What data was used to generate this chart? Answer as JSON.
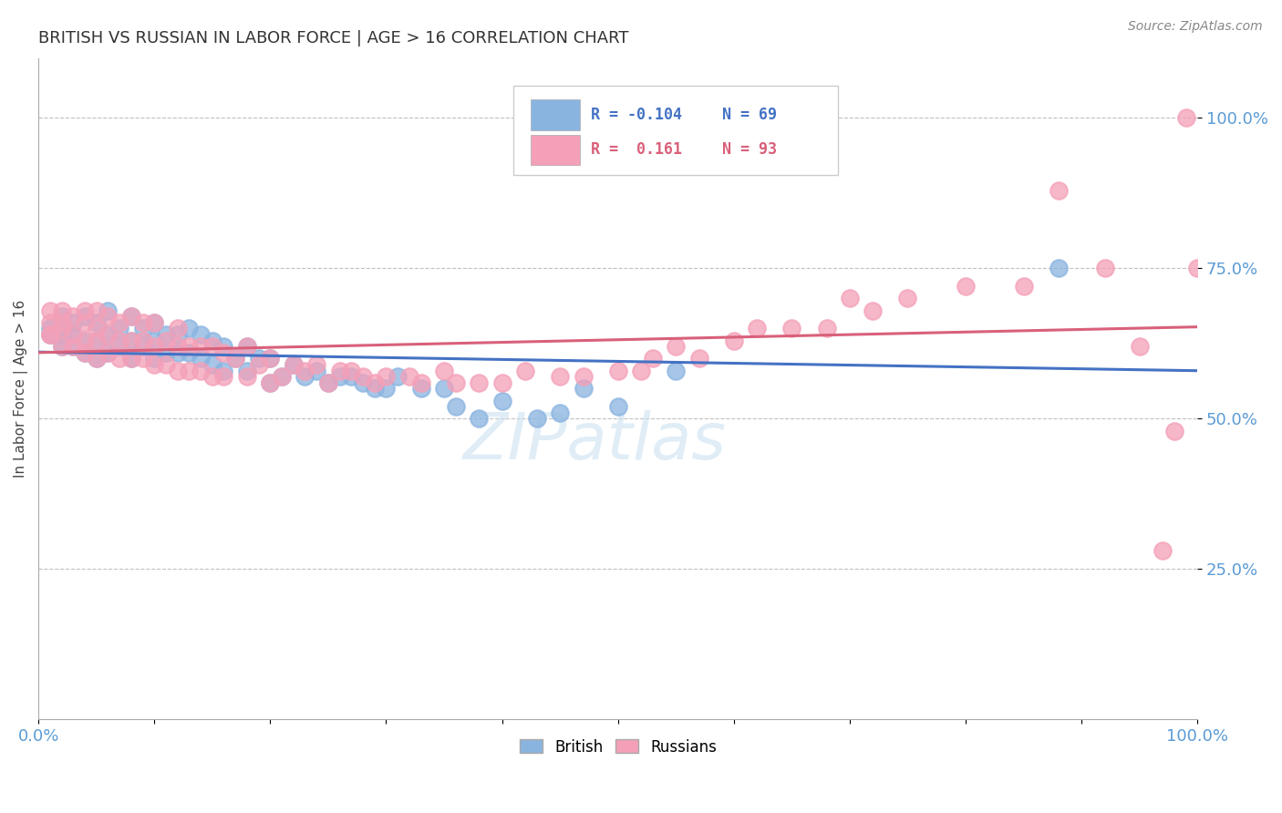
{
  "title": "BRITISH VS RUSSIAN IN LABOR FORCE | AGE > 16 CORRELATION CHART",
  "source_text": "Source: ZipAtlas.com",
  "ylabel": "In Labor Force | Age > 16",
  "xlim": [
    0.0,
    1.0
  ],
  "ylim": [
    0.0,
    1.1
  ],
  "yticks": [
    0.25,
    0.5,
    0.75,
    1.0
  ],
  "ytick_labels": [
    "25.0%",
    "50.0%",
    "75.0%",
    "100.0%"
  ],
  "british_color": "#8ab4e0",
  "russian_color": "#f4a0b8",
  "british_line_color": "#4472c4",
  "russian_line_color": "#d9607a",
  "british_r": -0.104,
  "british_n": 69,
  "russian_r": 0.161,
  "russian_n": 93,
  "grid_color": "#c0c0c0",
  "title_color": "#333333",
  "axis_tick_color": "#5b9bd5",
  "background_color": "#ffffff",
  "watermark": "ZIPatlas",
  "british_scatter_x": [
    0.01,
    0.01,
    0.01,
    0.02,
    0.02,
    0.02,
    0.02,
    0.03,
    0.03,
    0.03,
    0.04,
    0.04,
    0.04,
    0.05,
    0.05,
    0.05,
    0.06,
    0.06,
    0.06,
    0.07,
    0.07,
    0.08,
    0.08,
    0.08,
    0.09,
    0.09,
    0.1,
    0.1,
    0.1,
    0.11,
    0.11,
    0.12,
    0.12,
    0.13,
    0.13,
    0.14,
    0.14,
    0.15,
    0.15,
    0.16,
    0.16,
    0.17,
    0.18,
    0.18,
    0.19,
    0.2,
    0.2,
    0.21,
    0.22,
    0.23,
    0.24,
    0.25,
    0.26,
    0.27,
    0.28,
    0.29,
    0.3,
    0.31,
    0.33,
    0.35,
    0.36,
    0.38,
    0.4,
    0.43,
    0.45,
    0.47,
    0.5,
    0.55,
    0.88
  ],
  "british_scatter_y": [
    0.64,
    0.64,
    0.65,
    0.62,
    0.64,
    0.65,
    0.67,
    0.62,
    0.64,
    0.66,
    0.61,
    0.63,
    0.67,
    0.6,
    0.63,
    0.66,
    0.61,
    0.64,
    0.68,
    0.62,
    0.65,
    0.6,
    0.63,
    0.67,
    0.62,
    0.65,
    0.6,
    0.63,
    0.66,
    0.61,
    0.64,
    0.61,
    0.64,
    0.61,
    0.65,
    0.6,
    0.64,
    0.59,
    0.63,
    0.58,
    0.62,
    0.6,
    0.58,
    0.62,
    0.6,
    0.56,
    0.6,
    0.57,
    0.59,
    0.57,
    0.58,
    0.56,
    0.57,
    0.57,
    0.56,
    0.55,
    0.55,
    0.57,
    0.55,
    0.55,
    0.52,
    0.5,
    0.53,
    0.5,
    0.51,
    0.55,
    0.52,
    0.58,
    0.75
  ],
  "russian_scatter_x": [
    0.01,
    0.01,
    0.01,
    0.01,
    0.02,
    0.02,
    0.02,
    0.02,
    0.03,
    0.03,
    0.03,
    0.04,
    0.04,
    0.04,
    0.04,
    0.05,
    0.05,
    0.05,
    0.05,
    0.06,
    0.06,
    0.06,
    0.07,
    0.07,
    0.07,
    0.08,
    0.08,
    0.08,
    0.09,
    0.09,
    0.09,
    0.1,
    0.1,
    0.1,
    0.11,
    0.11,
    0.12,
    0.12,
    0.12,
    0.13,
    0.13,
    0.14,
    0.14,
    0.15,
    0.15,
    0.16,
    0.16,
    0.17,
    0.18,
    0.18,
    0.19,
    0.2,
    0.2,
    0.21,
    0.22,
    0.23,
    0.24,
    0.25,
    0.26,
    0.27,
    0.28,
    0.29,
    0.3,
    0.32,
    0.33,
    0.35,
    0.36,
    0.38,
    0.4,
    0.42,
    0.45,
    0.47,
    0.5,
    0.52,
    0.53,
    0.55,
    0.57,
    0.6,
    0.62,
    0.65,
    0.68,
    0.7,
    0.72,
    0.75,
    0.8,
    0.85,
    0.88,
    0.92,
    0.95,
    0.97,
    0.98,
    0.99,
    1.0
  ],
  "russian_scatter_y": [
    0.64,
    0.64,
    0.66,
    0.68,
    0.62,
    0.65,
    0.66,
    0.68,
    0.62,
    0.64,
    0.67,
    0.61,
    0.63,
    0.66,
    0.68,
    0.6,
    0.63,
    0.65,
    0.68,
    0.61,
    0.64,
    0.67,
    0.6,
    0.63,
    0.66,
    0.6,
    0.63,
    0.67,
    0.6,
    0.63,
    0.66,
    0.59,
    0.62,
    0.66,
    0.59,
    0.63,
    0.58,
    0.62,
    0.65,
    0.58,
    0.62,
    0.58,
    0.62,
    0.57,
    0.62,
    0.57,
    0.61,
    0.6,
    0.57,
    0.62,
    0.59,
    0.56,
    0.6,
    0.57,
    0.59,
    0.58,
    0.59,
    0.56,
    0.58,
    0.58,
    0.57,
    0.56,
    0.57,
    0.57,
    0.56,
    0.58,
    0.56,
    0.56,
    0.56,
    0.58,
    0.57,
    0.57,
    0.58,
    0.58,
    0.6,
    0.62,
    0.6,
    0.63,
    0.65,
    0.65,
    0.65,
    0.7,
    0.68,
    0.7,
    0.72,
    0.72,
    0.88,
    0.75,
    0.62,
    0.28,
    0.48,
    1.0,
    0.75
  ]
}
